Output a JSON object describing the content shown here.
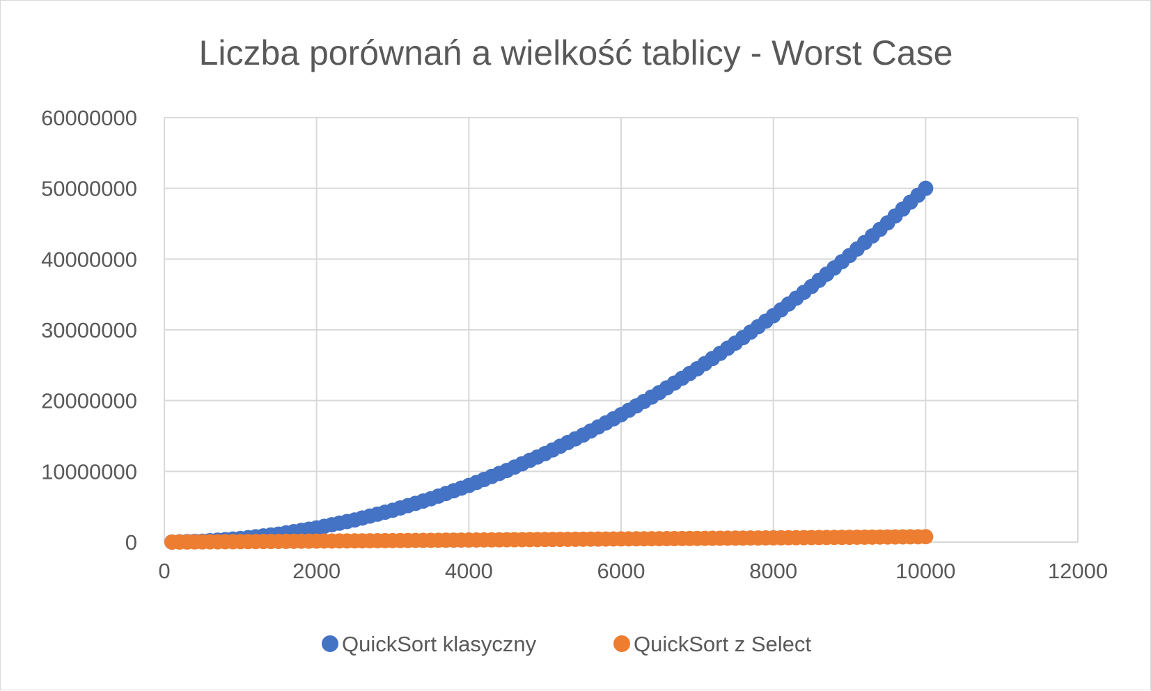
{
  "chart_data": {
    "type": "scatter",
    "title": "Liczba porównań a wielkość tablicy - Worst Case",
    "xlabel": "",
    "ylabel": "",
    "xlim": [
      0,
      12000
    ],
    "ylim": [
      0,
      60000000
    ],
    "x_ticks": [
      "0",
      "2000",
      "4000",
      "6000",
      "8000",
      "10000",
      "12000"
    ],
    "y_ticks": [
      "0",
      "10000000",
      "20000000",
      "30000000",
      "40000000",
      "50000000",
      "60000000"
    ],
    "grid": true,
    "legend_position": "bottom",
    "colors": {
      "quicksort_klasyczny": "#4472c4",
      "quicksort_select": "#ed7d31",
      "grid": "#d9d9d9",
      "text": "#595959"
    },
    "series": [
      {
        "name": "QuickSort klasyczny",
        "color": "#4472c4",
        "x": [
          100,
          500,
          1000,
          1500,
          2000,
          2500,
          3000,
          3500,
          4000,
          4500,
          5000,
          5500,
          6000,
          6500,
          7000,
          7500,
          8000,
          8500,
          9000,
          9500,
          10000
        ],
        "y": [
          5000,
          125000,
          500000,
          1125000,
          2000000,
          3125000,
          4500000,
          6125000,
          8000000,
          10125000,
          12500000,
          15125000,
          18000000,
          21125000,
          24500000,
          28125000,
          32000000,
          36125000,
          40500000,
          45125000,
          50000000
        ]
      },
      {
        "name": "QuickSort z Select",
        "color": "#ed7d31",
        "x": [
          100,
          500,
          1000,
          1500,
          2000,
          2500,
          3000,
          3500,
          4000,
          4500,
          5000,
          5500,
          6000,
          6500,
          7000,
          7500,
          8000,
          8500,
          9000,
          9500,
          10000
        ],
        "y": [
          2000,
          30000,
          60000,
          100000,
          140000,
          170000,
          210000,
          250000,
          290000,
          330000,
          370000,
          410000,
          450000,
          480000,
          520000,
          560000,
          600000,
          640000,
          680000,
          720000,
          760000
        ]
      }
    ]
  }
}
